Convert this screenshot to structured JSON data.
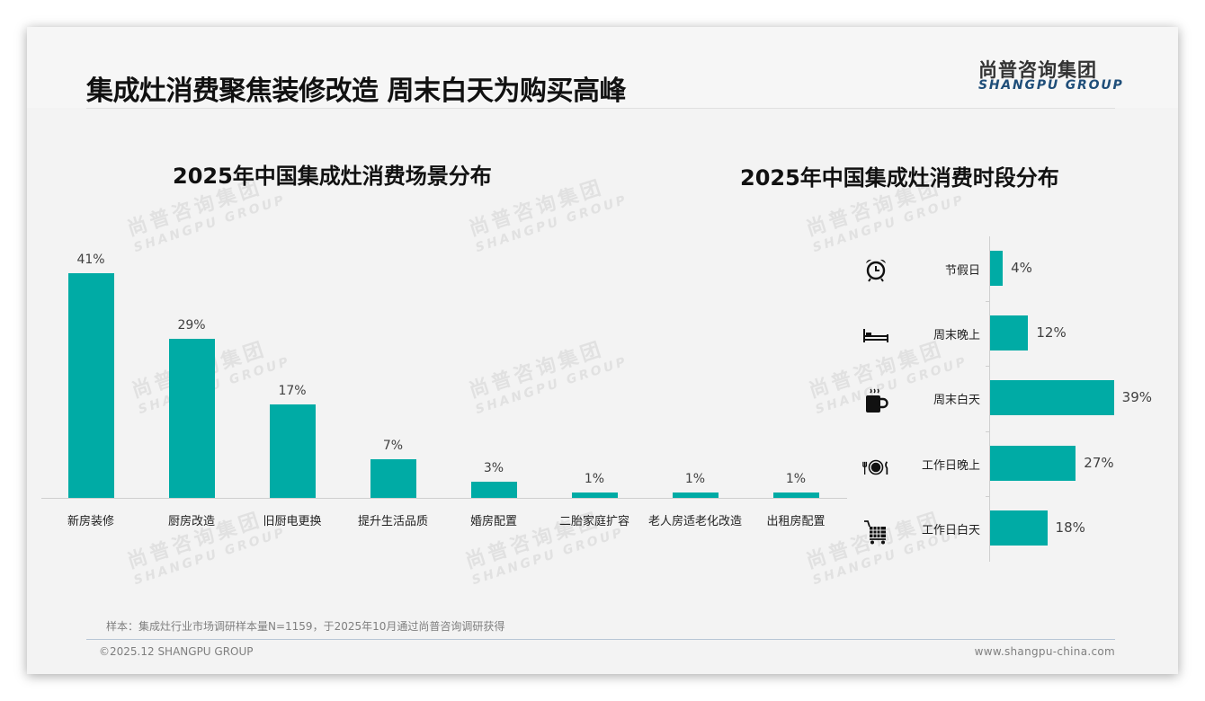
{
  "header": {
    "title": "集成灶消费聚焦装修改造 周末白天为购买高峰",
    "logo_cn": "尚普咨询集团",
    "logo_en": "SHANGPU GROUP"
  },
  "watermark": {
    "cn": "尚普咨询集团",
    "en": "SHANGPU GROUP"
  },
  "colors": {
    "bar": "#00aba5",
    "title": "#111111",
    "logo_en": "#1f4e79",
    "background": "#f3f3f3"
  },
  "chart_data": [
    {
      "type": "bar",
      "orientation": "vertical",
      "title": "2025年中国集成灶消费场景分布",
      "categories": [
        "新房装修",
        "厨房改造",
        "旧厨电更换",
        "提升生活品质",
        "婚房配置",
        "二胎家庭扩容",
        "老人房适老化改造",
        "出租房配置"
      ],
      "values": [
        41,
        29,
        17,
        7,
        3,
        1,
        1,
        1
      ],
      "labels": [
        "41%",
        "29%",
        "17%",
        "7%",
        "3%",
        "1%",
        "1%",
        "1%"
      ],
      "xlabel": "",
      "ylabel": "",
      "unit": "%",
      "grid": false,
      "legend": "none"
    },
    {
      "type": "bar",
      "orientation": "horizontal",
      "title": "2025年中国集成灶消费时段分布",
      "categories": [
        "节假日",
        "周末晚上",
        "周末白天",
        "工作日晚上",
        "工作日白天"
      ],
      "values": [
        4,
        12,
        39,
        27,
        18
      ],
      "labels": [
        "4%",
        "12%",
        "39%",
        "27%",
        "18%"
      ],
      "icons": [
        "alarm-clock-icon",
        "bed-icon",
        "hot-coffee-cup-icon",
        "plate-fork-knife-icon",
        "shopping-cart-icon"
      ],
      "xlabel": "",
      "ylabel": "",
      "unit": "%",
      "grid": false,
      "legend": "none"
    }
  ],
  "footer": {
    "note": "样本：集成灶行业市场调研样本量N=1159，于2025年10月通过尚普咨询调研获得",
    "copyright": "©2025.12 SHANGPU GROUP",
    "website": "www.shangpu-china.com"
  }
}
